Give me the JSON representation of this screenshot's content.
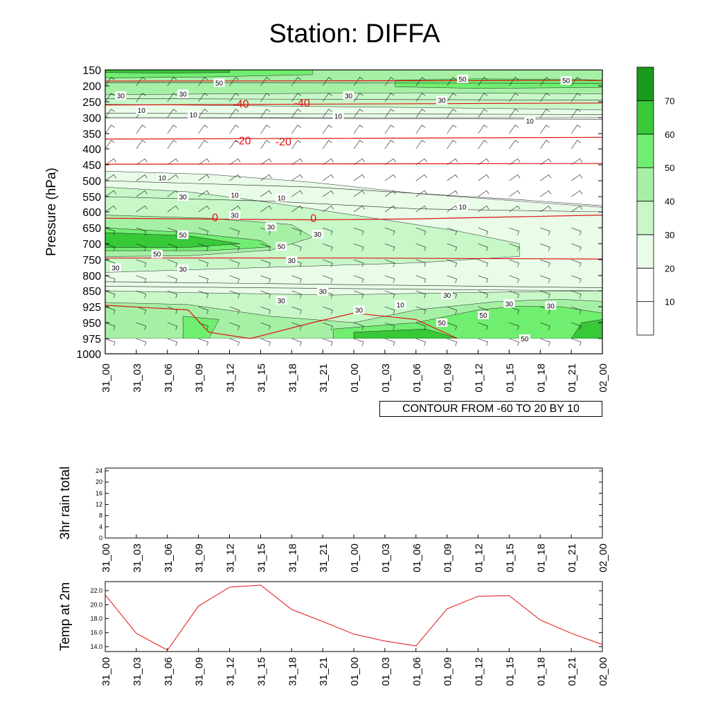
{
  "title": "Station: DIFFA",
  "contour_note": "CONTOUR FROM -60 TO 20 BY 10",
  "colors": {
    "temp_contour": "#e01010",
    "temp_line": "#e01010",
    "fill_scale": [
      "#ffffff",
      "#ffffff",
      "#e8fce8",
      "#c8f8c8",
      "#a6f0a6",
      "#70ee70",
      "#38c838",
      "#1a9a1a"
    ]
  },
  "chart_data": [
    {
      "id": "cross-section",
      "type": "heatmap",
      "title": "Station: DIFFA",
      "xlabel": "",
      "ylabel": "Pressure (hPa)",
      "x_ticks": [
        "31_00",
        "31_03",
        "31_06",
        "31_09",
        "31_12",
        "31_15",
        "31_18",
        "31_21",
        "01_00",
        "01_03",
        "01_06",
        "01_09",
        "01_12",
        "01_15",
        "01_18",
        "01_21",
        "02_00"
      ],
      "y_ticks": [
        "150",
        "200",
        "250",
        "300",
        "350",
        "400",
        "450",
        "500",
        "550",
        "600",
        "650",
        "700",
        "750",
        "800",
        "850",
        "925",
        "950",
        "975",
        "1000"
      ],
      "colorbar": {
        "levels": [
          "10",
          "20",
          "30",
          "40",
          "50",
          "60",
          "70"
        ]
      },
      "note": "CONTOUR FROM -60 TO 20 BY 10",
      "temperature_contours": [
        {
          "value": "-40",
          "level": 255,
          "labels": [
            [
              19,
              252
            ],
            [
              13.1,
              255
            ]
          ]
        },
        {
          "value": "-20",
          "level": 365,
          "labels": [
            [
              17.2,
              375
            ],
            [
              13.3,
              372
            ]
          ]
        },
        {
          "value": "0",
          "level": 615,
          "labels": [
            [
              20.1,
              618
            ],
            [
              10.6,
              616
            ]
          ]
        }
      ],
      "speed_contour_labels": [
        {
          "t": 11,
          "p": 190,
          "text": "50"
        },
        {
          "t": 34.5,
          "p": 178,
          "text": "50"
        },
        {
          "t": 44.5,
          "p": 183,
          "text": "50"
        },
        {
          "t": 1.5,
          "p": 230,
          "text": "30"
        },
        {
          "t": 7.5,
          "p": 225,
          "text": "30"
        },
        {
          "t": 23.5,
          "p": 230,
          "text": "30"
        },
        {
          "t": 32.5,
          "p": 245,
          "text": "30"
        },
        {
          "t": 3.5,
          "p": 276,
          "text": "10"
        },
        {
          "t": 8.5,
          "p": 290,
          "text": "10"
        },
        {
          "t": 22.5,
          "p": 295,
          "text": "10"
        },
        {
          "t": 41,
          "p": 310,
          "text": "10"
        },
        {
          "t": 5.5,
          "p": 490,
          "text": "10"
        },
        {
          "t": 7.5,
          "p": 550,
          "text": "30"
        },
        {
          "t": 12.5,
          "p": 545,
          "text": "10"
        },
        {
          "t": 17,
          "p": 553,
          "text": "10"
        },
        {
          "t": 34.5,
          "p": 583,
          "text": "10"
        },
        {
          "t": 12.5,
          "p": 610,
          "text": "30"
        },
        {
          "t": 7.5,
          "p": 672,
          "text": "50"
        },
        {
          "t": 16,
          "p": 647,
          "text": "30"
        },
        {
          "t": 20.5,
          "p": 670,
          "text": "30"
        },
        {
          "t": 17,
          "p": 708,
          "text": "50"
        },
        {
          "t": 5,
          "p": 732,
          "text": "50"
        },
        {
          "t": 18,
          "p": 752,
          "text": "30"
        },
        {
          "t": 1,
          "p": 775,
          "text": "30"
        },
        {
          "t": 7.5,
          "p": 779,
          "text": "30"
        },
        {
          "t": 21,
          "p": 852,
          "text": "30"
        },
        {
          "t": 17,
          "p": 895,
          "text": "30"
        },
        {
          "t": 28.5,
          "p": 915,
          "text": "10"
        },
        {
          "t": 33,
          "p": 870,
          "text": "30"
        },
        {
          "t": 39,
          "p": 910,
          "text": "30"
        },
        {
          "t": 43,
          "p": 920,
          "text": "30"
        },
        {
          "t": 24.5,
          "p": 930,
          "text": "30"
        },
        {
          "t": 32.5,
          "p": 950,
          "text": "50"
        },
        {
          "t": 36.5,
          "p": 938,
          "text": "50"
        },
        {
          "t": 40.5,
          "p": 975,
          "text": "50"
        }
      ],
      "ylim": [
        150,
        1000
      ]
    },
    {
      "id": "rain",
      "type": "line",
      "ylabel": "3hr rain total",
      "x_ticks": [
        "31_00",
        "31_03",
        "31_06",
        "31_09",
        "31_12",
        "31_15",
        "31_18",
        "31_21",
        "01_00",
        "01_03",
        "01_06",
        "01_09",
        "01_12",
        "01_15",
        "01_18",
        "01_21",
        "02_00"
      ],
      "y_ticks": [
        "0",
        "4",
        "8",
        "12",
        "16",
        "20",
        "24"
      ],
      "ylim": [
        0,
        25
      ],
      "values": []
    },
    {
      "id": "temp2m",
      "type": "line",
      "ylabel": "Temp at 2m",
      "x_ticks": [
        "31_00",
        "31_03",
        "31_06",
        "31_09",
        "31_12",
        "31_15",
        "31_18",
        "31_21",
        "01_00",
        "01_03",
        "01_06",
        "01_09",
        "01_12",
        "01_15",
        "01_18",
        "01_21",
        "02_00"
      ],
      "y_ticks": [
        "14.0",
        "16.0",
        "18.0",
        "20.0",
        "22.0"
      ],
      "ylim": [
        13.3,
        23.3
      ],
      "values": [
        21.4,
        15.9,
        13.5,
        19.8,
        22.5,
        22.8,
        19.3,
        17.6,
        15.8,
        14.8,
        14.1,
        19.4,
        21.2,
        21.3,
        17.8,
        15.9,
        14.3
      ]
    }
  ]
}
